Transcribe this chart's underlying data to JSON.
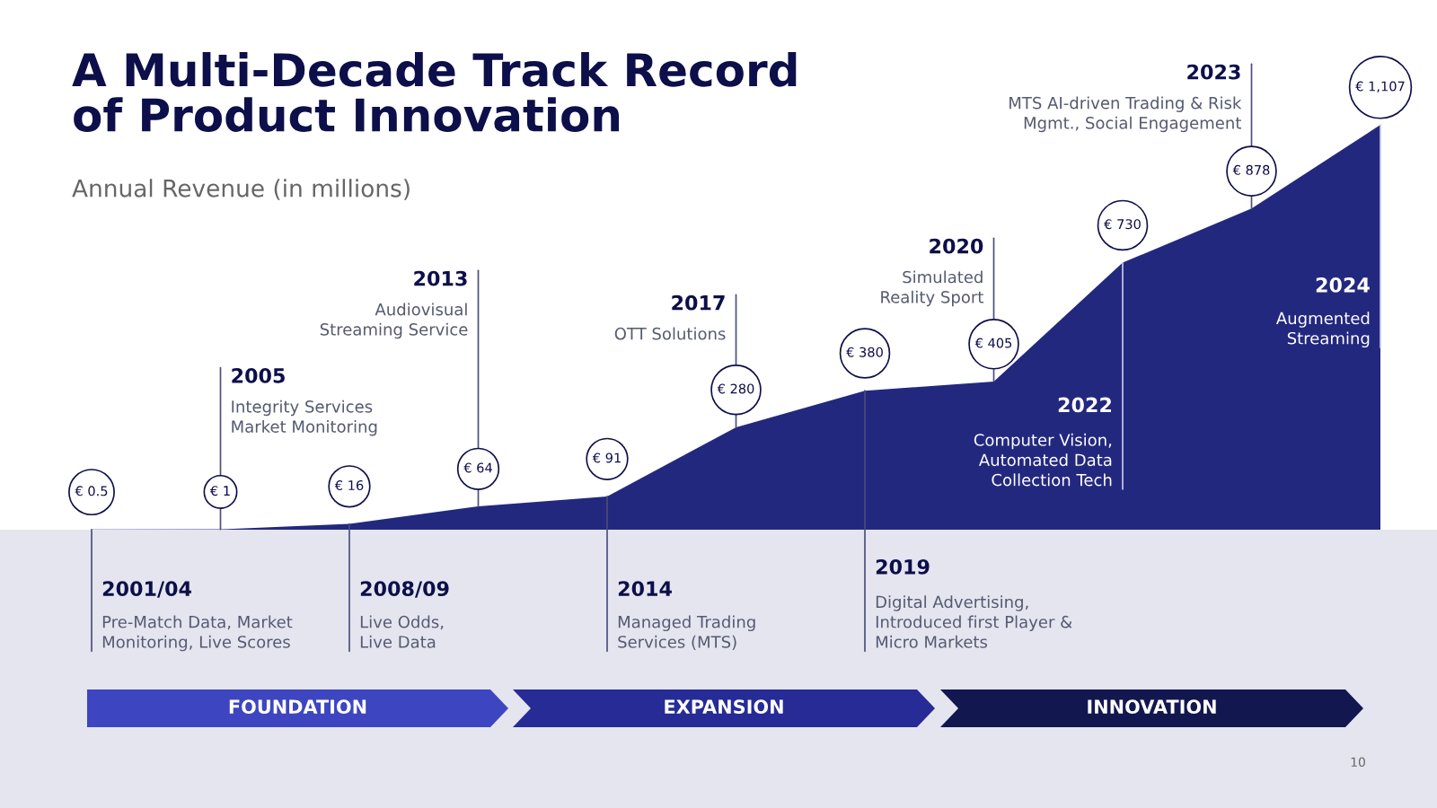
{
  "chart_data": {
    "type": "area",
    "title": "A Multi-Decade Track Record\nof Product Innovation",
    "subtitle": "Annual Revenue (in millions)",
    "categories": [
      null,
      null,
      null,
      null,
      null,
      null,
      null,
      null,
      null,
      null,
      null
    ],
    "series": [
      {
        "color": "#23287f",
        "values": [
          0.5,
          1,
          16,
          64,
          91,
          280,
          380,
          405,
          730,
          878,
          1107
        ],
        "value_labels": [
          "€ 0.5",
          "€ 1",
          "€ 16",
          "€ 64",
          "€ 91",
          "€ 280",
          "€ 380",
          "€ 405",
          "€ 730",
          "€ 878",
          "€ 1,107"
        ]
      }
    ],
    "legend": false,
    "annotations": [
      "2001/04\nPre-Match Data, Market\nMonitoring, Live Scores",
      "2005\nIntegrity Services\nMarket Monitoring",
      "2008/09\nLive Odds,\nLive Data",
      "2013\nAudiovisual\nStreaming Service",
      "2014\nManaged Trading\nServices (MTS)",
      "2017\nOTT Solutions",
      "2019\nDigital Advertising,\nIntroduced first Player &\nMicro Markets",
      "2020\nSimulated\nReality Sport",
      "2022\nComputer Vision,\nAutomated Data\nCollection Tech",
      "2023\nMTS AI-driven Trading & Risk\nMgmt., Social Engagement",
      "2024\nAugmented\nStreaming",
      "FOUNDATION",
      "EXPANSION",
      "INNOVATION",
      "10"
    ]
  }
}
